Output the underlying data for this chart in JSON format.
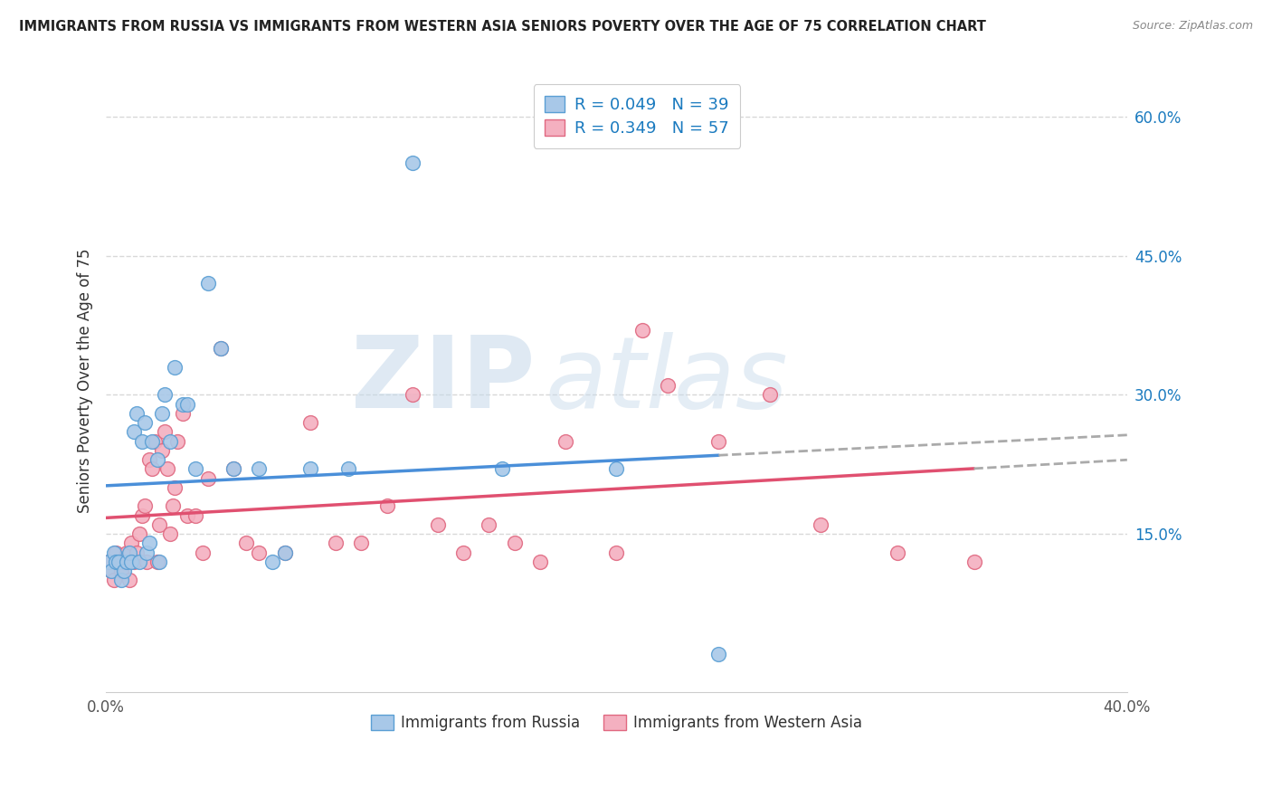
{
  "title": "IMMIGRANTS FROM RUSSIA VS IMMIGRANTS FROM WESTERN ASIA SENIORS POVERTY OVER THE AGE OF 75 CORRELATION CHART",
  "source": "Source: ZipAtlas.com",
  "ylabel": "Seniors Poverty Over the Age of 75",
  "xlim": [
    0,
    0.4
  ],
  "ylim": [
    -0.02,
    0.65
  ],
  "yticks_right": [
    0.15,
    0.3,
    0.45,
    0.6
  ],
  "ytick_labels_right": [
    "15.0%",
    "30.0%",
    "45.0%",
    "60.0%"
  ],
  "russia_color": "#a8c8e8",
  "russia_edge": "#5a9fd4",
  "western_asia_color": "#f4b0c0",
  "western_asia_edge": "#e06880",
  "russia_R": 0.049,
  "russia_N": 39,
  "western_asia_R": 0.349,
  "western_asia_N": 57,
  "legend_color": "#1a7abf",
  "trend_russia_color": "#4a8fd9",
  "trend_western_asia_color": "#e05070",
  "russia_x": [
    0.001,
    0.002,
    0.003,
    0.004,
    0.005,
    0.006,
    0.007,
    0.008,
    0.009,
    0.01,
    0.011,
    0.012,
    0.013,
    0.014,
    0.015,
    0.016,
    0.017,
    0.018,
    0.02,
    0.021,
    0.022,
    0.023,
    0.025,
    0.027,
    0.03,
    0.032,
    0.035,
    0.04,
    0.045,
    0.05,
    0.06,
    0.065,
    0.07,
    0.08,
    0.095,
    0.12,
    0.155,
    0.2,
    0.24
  ],
  "russia_y": [
    0.12,
    0.11,
    0.13,
    0.12,
    0.12,
    0.1,
    0.11,
    0.12,
    0.13,
    0.12,
    0.26,
    0.28,
    0.12,
    0.25,
    0.27,
    0.13,
    0.14,
    0.25,
    0.23,
    0.12,
    0.28,
    0.3,
    0.25,
    0.33,
    0.29,
    0.29,
    0.22,
    0.42,
    0.35,
    0.22,
    0.22,
    0.12,
    0.13,
    0.22,
    0.22,
    0.55,
    0.22,
    0.22,
    0.02
  ],
  "western_asia_x": [
    0.001,
    0.002,
    0.003,
    0.004,
    0.005,
    0.006,
    0.007,
    0.008,
    0.009,
    0.01,
    0.011,
    0.012,
    0.013,
    0.014,
    0.015,
    0.016,
    0.017,
    0.018,
    0.019,
    0.02,
    0.021,
    0.022,
    0.023,
    0.024,
    0.025,
    0.026,
    0.027,
    0.028,
    0.03,
    0.032,
    0.035,
    0.038,
    0.04,
    0.045,
    0.05,
    0.055,
    0.06,
    0.07,
    0.08,
    0.09,
    0.1,
    0.11,
    0.12,
    0.13,
    0.14,
    0.15,
    0.16,
    0.17,
    0.18,
    0.2,
    0.21,
    0.22,
    0.24,
    0.26,
    0.28,
    0.31,
    0.34
  ],
  "western_asia_y": [
    0.12,
    0.11,
    0.1,
    0.13,
    0.12,
    0.11,
    0.12,
    0.13,
    0.1,
    0.14,
    0.12,
    0.13,
    0.15,
    0.17,
    0.18,
    0.12,
    0.23,
    0.22,
    0.25,
    0.12,
    0.16,
    0.24,
    0.26,
    0.22,
    0.15,
    0.18,
    0.2,
    0.25,
    0.28,
    0.17,
    0.17,
    0.13,
    0.21,
    0.35,
    0.22,
    0.14,
    0.13,
    0.13,
    0.27,
    0.14,
    0.14,
    0.18,
    0.3,
    0.16,
    0.13,
    0.16,
    0.14,
    0.12,
    0.25,
    0.13,
    0.37,
    0.31,
    0.25,
    0.3,
    0.16,
    0.13,
    0.12
  ],
  "background_color": "#ffffff",
  "grid_color": "#d8d8d8",
  "watermark_zip": "ZIP",
  "watermark_atlas": "atlas",
  "watermark_color_zip": "#c5d8ea",
  "watermark_color_atlas": "#c5d8ea"
}
